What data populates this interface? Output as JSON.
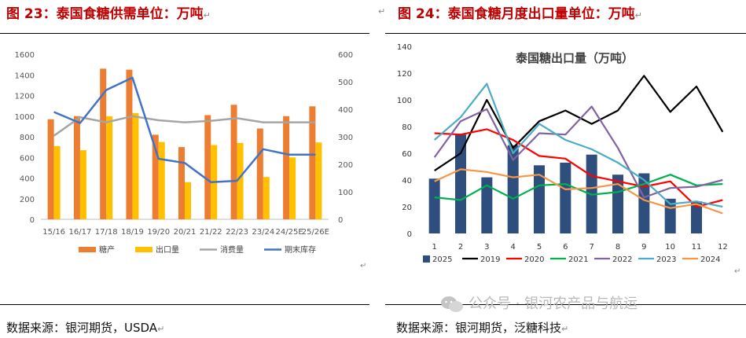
{
  "left": {
    "title": "图 23：泰国食糖供需单位：万吨",
    "source": "数据来源：银河期货，USDA"
  },
  "right": {
    "title": "图 24：泰国食糖月度出口量单位：万吨",
    "source": "数据来源：银河期货，泛糖科技"
  },
  "watermark": "公众号 · 银河农产品与航运",
  "return_mark": "↵",
  "chart_data": [
    {
      "type": "bar",
      "title": "",
      "categories": [
        "15/16",
        "16/17",
        "17/18",
        "18/19",
        "19/20",
        "20/21",
        "21/22",
        "22/23",
        "23/24",
        "24/25E",
        "25/26E"
      ],
      "ylim_left": [
        0,
        1600
      ],
      "yticks_left": [
        "0",
        "200",
        "400",
        "600",
        "800",
        "1000",
        "1200",
        "1400",
        "1600"
      ],
      "ylim_right": [
        0,
        600
      ],
      "yticks_right": [
        "0",
        "100",
        "200",
        "300",
        "400",
        "500",
        "600"
      ],
      "series": [
        {
          "name": "糖产",
          "kind": "bar",
          "axis": "left",
          "color": "#ED7D31",
          "values": [
            970,
            1000,
            1460,
            1450,
            820,
            700,
            1010,
            1110,
            880,
            1000,
            1095
          ]
        },
        {
          "name": "出口量",
          "kind": "bar",
          "axis": "left",
          "color": "#FFC000",
          "values": [
            710,
            670,
            1000,
            1030,
            750,
            360,
            720,
            740,
            410,
            600,
            745
          ]
        },
        {
          "name": "消费量",
          "kind": "line",
          "axis": "left",
          "color": "#A5A5A5",
          "values": [
            810,
            990,
            940,
            1000,
            960,
            940,
            955,
            980,
            940,
            940,
            940
          ]
        },
        {
          "name": "期末库存",
          "kind": "line",
          "axis": "right",
          "color": "#4472C4",
          "values": [
            390,
            350,
            470,
            515,
            220,
            205,
            135,
            140,
            255,
            235,
            235
          ]
        }
      ]
    },
    {
      "type": "bar",
      "title": "泰国糖出口量（万吨）",
      "categories": [
        "1",
        "2",
        "3",
        "4",
        "5",
        "6",
        "7",
        "8",
        "9",
        "10",
        "11",
        "12"
      ],
      "ylim": [
        0,
        140
      ],
      "yticks": [
        "0",
        "20",
        "40",
        "60",
        "80",
        "100",
        "120",
        "140"
      ],
      "series": [
        {
          "name": "2025",
          "kind": "bar",
          "color": "#2E4E7E",
          "values": [
            41,
            74,
            42,
            66,
            51,
            53,
            59,
            44,
            45,
            26,
            24,
            null
          ]
        },
        {
          "name": "2019",
          "kind": "line",
          "color": "#000000",
          "values": [
            47,
            60,
            100,
            64,
            84,
            92,
            82,
            92,
            118,
            91,
            110,
            76
          ]
        },
        {
          "name": "2020",
          "kind": "line",
          "color": "#FF0000",
          "values": [
            75,
            74,
            78,
            70,
            58,
            56,
            43,
            39,
            35,
            39,
            20,
            25
          ]
        },
        {
          "name": "2021",
          "kind": "line",
          "color": "#00B050",
          "values": [
            27,
            25,
            36,
            26,
            36,
            37,
            29,
            31,
            37,
            44,
            36,
            37
          ]
        },
        {
          "name": "2022",
          "kind": "line",
          "color": "#8064A2",
          "values": [
            57,
            84,
            93,
            55,
            75,
            74,
            95,
            64,
            27,
            34,
            35,
            40
          ]
        },
        {
          "name": "2023",
          "kind": "line",
          "color": "#4BACC6",
          "values": [
            70,
            87,
            112,
            60,
            82,
            70,
            63,
            53,
            40,
            22,
            24,
            20
          ]
        },
        {
          "name": "2024",
          "kind": "line",
          "color": "#F79646",
          "values": [
            39,
            48,
            46,
            42,
            44,
            33,
            34,
            37,
            25,
            19,
            22,
            15
          ]
        }
      ]
    }
  ]
}
